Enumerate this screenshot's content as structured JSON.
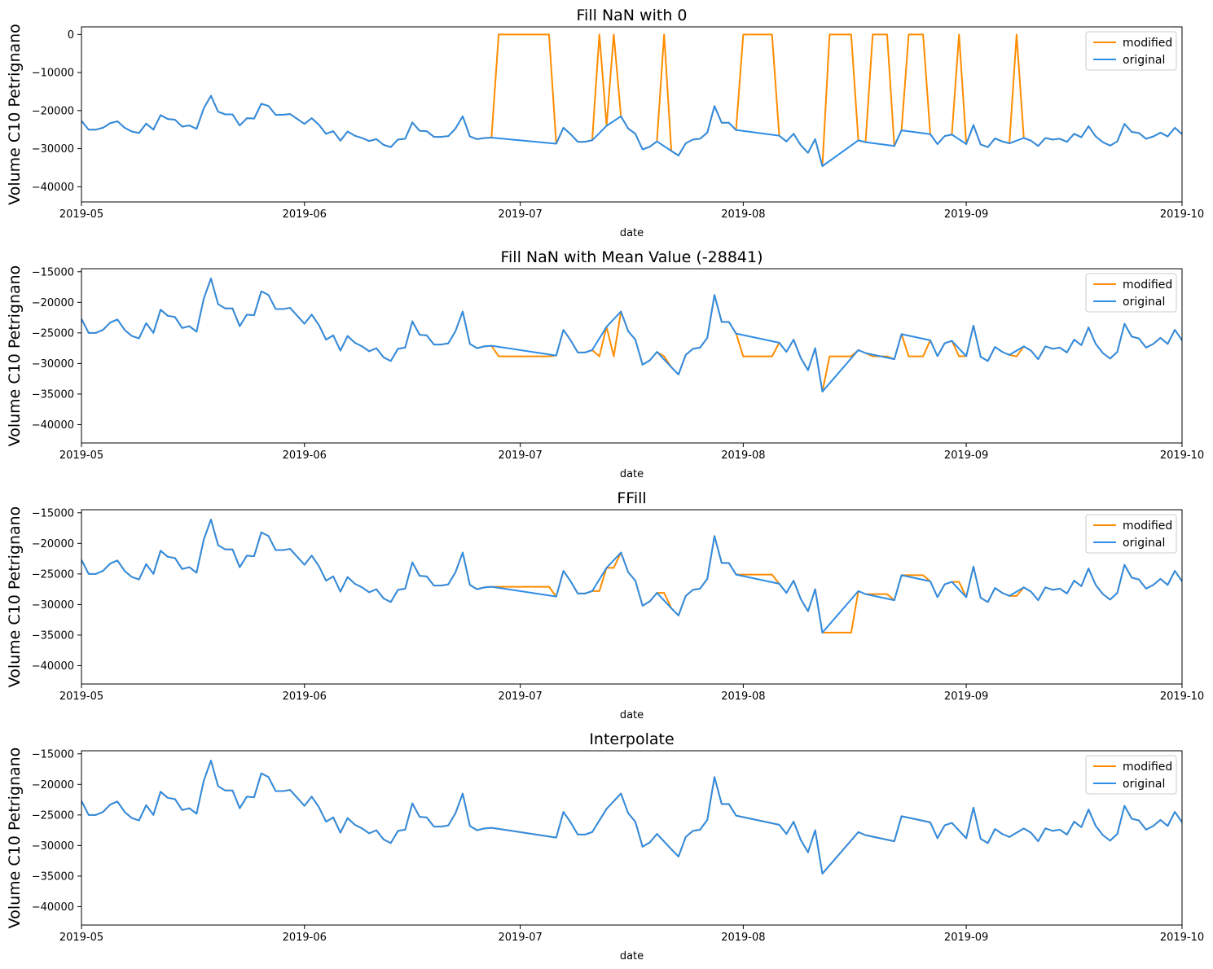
{
  "colors": {
    "modified": "#ff8c00",
    "original": "#2e8de6",
    "axis": "#000000",
    "legend_border": "#cccccc"
  },
  "chart_data": [
    {
      "type": "line",
      "title": "Fill NaN with 0",
      "xlabel": "date",
      "ylabel": "Volume C10 Petrignano",
      "xlim": [
        "2019-05-01",
        "2019-10-01"
      ],
      "ylim": [
        -44000,
        2000
      ],
      "xticks": [
        "2019-05",
        "2019-06",
        "2019-07",
        "2019-08",
        "2019-09",
        "2019-10"
      ],
      "yticks": [
        0,
        -10000,
        -20000,
        -30000,
        -40000
      ],
      "legend": [
        "modified",
        "original"
      ],
      "legend_position": "top-right",
      "modified_mode": "zero"
    },
    {
      "type": "line",
      "title": "Fill NaN with Mean Value (-28841)",
      "xlabel": "date",
      "ylabel": "Volume C10 Petrignano",
      "xlim": [
        "2019-05-01",
        "2019-10-01"
      ],
      "ylim": [
        -43000,
        -14500
      ],
      "xticks": [
        "2019-05",
        "2019-06",
        "2019-07",
        "2019-08",
        "2019-09",
        "2019-10"
      ],
      "yticks": [
        -15000,
        -20000,
        -25000,
        -30000,
        -35000,
        -40000
      ],
      "legend": [
        "modified",
        "original"
      ],
      "legend_position": "top-right",
      "modified_mode": "mean",
      "mean_value": -28841
    },
    {
      "type": "line",
      "title": "FFill",
      "xlabel": "date",
      "ylabel": "Volume C10 Petrignano",
      "xlim": [
        "2019-05-01",
        "2019-10-01"
      ],
      "ylim": [
        -43000,
        -14500
      ],
      "xticks": [
        "2019-05",
        "2019-06",
        "2019-07",
        "2019-08",
        "2019-09",
        "2019-10"
      ],
      "yticks": [
        -15000,
        -20000,
        -25000,
        -30000,
        -35000,
        -40000
      ],
      "legend": [
        "modified",
        "original"
      ],
      "legend_position": "top-right",
      "modified_mode": "ffill"
    },
    {
      "type": "line",
      "title": "Interpolate",
      "xlabel": "date",
      "ylabel": "Volume C10 Petrignano",
      "xlim": [
        "2019-05-01",
        "2019-10-01"
      ],
      "ylim": [
        -43000,
        -14500
      ],
      "xticks": [
        "2019-05",
        "2019-06",
        "2019-07",
        "2019-08",
        "2019-09",
        "2019-10"
      ],
      "yticks": [
        -15000,
        -20000,
        -25000,
        -30000,
        -35000,
        -40000
      ],
      "legend": [
        "modified",
        "original"
      ],
      "legend_position": "top-right",
      "modified_mode": "interpolate"
    }
  ],
  "series_original": [
    [
      "2019-05-01",
      -22700
    ],
    [
      "2019-05-02",
      -25000
    ],
    [
      "2019-05-03",
      -25000
    ],
    [
      "2019-05-04",
      -24500
    ],
    [
      "2019-05-05",
      -23300
    ],
    [
      "2019-05-06",
      -22800
    ],
    [
      "2019-05-07",
      -24500
    ],
    [
      "2019-05-08",
      -25500
    ],
    [
      "2019-05-09",
      -25900
    ],
    [
      "2019-05-10",
      -23400
    ],
    [
      "2019-05-11",
      -25000
    ],
    [
      "2019-05-12",
      -21200
    ],
    [
      "2019-05-13",
      -22200
    ],
    [
      "2019-05-14",
      -22400
    ],
    [
      "2019-05-15",
      -24200
    ],
    [
      "2019-05-16",
      -23900
    ],
    [
      "2019-05-17",
      -24800
    ],
    [
      "2019-05-18",
      -19400
    ],
    [
      "2019-05-19",
      -16100
    ],
    [
      "2019-05-20",
      -20300
    ],
    [
      "2019-05-21",
      -21000
    ],
    [
      "2019-05-22",
      -21000
    ],
    [
      "2019-05-23",
      -23900
    ],
    [
      "2019-05-24",
      -22000
    ],
    [
      "2019-05-25",
      -22100
    ],
    [
      "2019-05-26",
      -18200
    ],
    [
      "2019-05-27",
      -18800
    ],
    [
      "2019-05-28",
      -21100
    ],
    [
      "2019-05-29",
      -21100
    ],
    [
      "2019-05-30",
      -20900
    ],
    [
      "2019-05-31",
      -22200
    ],
    [
      "2019-06-01",
      -23500
    ],
    [
      "2019-06-02",
      -22000
    ],
    [
      "2019-06-03",
      -23700
    ],
    [
      "2019-06-04",
      -26100
    ],
    [
      "2019-06-05",
      -25400
    ],
    [
      "2019-06-06",
      -27900
    ],
    [
      "2019-06-07",
      -25500
    ],
    [
      "2019-06-08",
      -26600
    ],
    [
      "2019-06-09",
      -27200
    ],
    [
      "2019-06-10",
      -28000
    ],
    [
      "2019-06-11",
      -27500
    ],
    [
      "2019-06-12",
      -29000
    ],
    [
      "2019-06-13",
      -29600
    ],
    [
      "2019-06-14",
      -27600
    ],
    [
      "2019-06-15",
      -27400
    ],
    [
      "2019-06-16",
      -23100
    ],
    [
      "2019-06-17",
      -25300
    ],
    [
      "2019-06-18",
      -25400
    ],
    [
      "2019-06-19",
      -26900
    ],
    [
      "2019-06-20",
      -26900
    ],
    [
      "2019-06-21",
      -26700
    ],
    [
      "2019-06-22",
      -24700
    ],
    [
      "2019-06-23",
      -21500
    ],
    [
      "2019-06-24",
      -26800
    ],
    [
      "2019-06-25",
      -27500
    ],
    [
      "2019-06-26",
      -27200
    ],
    [
      "2019-06-27",
      -27100
    ],
    [
      "2019-07-06",
      -28700
    ],
    [
      "2019-07-07",
      -24500
    ],
    [
      "2019-07-08",
      -26200
    ],
    [
      "2019-07-09",
      -28200
    ],
    [
      "2019-07-10",
      -28200
    ],
    [
      "2019-07-11",
      -27800
    ],
    [
      "2019-07-13",
      -24000
    ],
    [
      "2019-07-15",
      -21500
    ],
    [
      "2019-07-16",
      -24700
    ],
    [
      "2019-07-17",
      -26100
    ],
    [
      "2019-07-18",
      -30200
    ],
    [
      "2019-07-19",
      -29500
    ],
    [
      "2019-07-20",
      -28100
    ],
    [
      "2019-07-22",
      -30600
    ],
    [
      "2019-07-23",
      -31800
    ],
    [
      "2019-07-24",
      -28600
    ],
    [
      "2019-07-25",
      -27600
    ],
    [
      "2019-07-26",
      -27400
    ],
    [
      "2019-07-27",
      -25800
    ],
    [
      "2019-07-28",
      -18800
    ],
    [
      "2019-07-29",
      -23200
    ],
    [
      "2019-07-30",
      -23200
    ],
    [
      "2019-07-31",
      -25100
    ],
    [
      "2019-08-06",
      -26600
    ],
    [
      "2019-08-07",
      -28100
    ],
    [
      "2019-08-08",
      -26100
    ],
    [
      "2019-08-09",
      -29100
    ],
    [
      "2019-08-10",
      -31100
    ],
    [
      "2019-08-11",
      -27500
    ],
    [
      "2019-08-12",
      -34600
    ],
    [
      "2019-08-17",
      -27800
    ],
    [
      "2019-08-18",
      -28300
    ],
    [
      "2019-08-22",
      -29300
    ],
    [
      "2019-08-23",
      -25200
    ],
    [
      "2019-08-27",
      -26200
    ],
    [
      "2019-08-28",
      -28800
    ],
    [
      "2019-08-29",
      -26700
    ],
    [
      "2019-08-30",
      -26300
    ],
    [
      "2019-09-01",
      -28800
    ],
    [
      "2019-09-02",
      -23800
    ],
    [
      "2019-09-03",
      -28900
    ],
    [
      "2019-09-04",
      -29600
    ],
    [
      "2019-09-05",
      -27300
    ],
    [
      "2019-09-06",
      -28100
    ],
    [
      "2019-09-07",
      -28600
    ],
    [
      "2019-09-09",
      -27200
    ],
    [
      "2019-09-10",
      -27900
    ],
    [
      "2019-09-11",
      -29300
    ],
    [
      "2019-09-12",
      -27200
    ],
    [
      "2019-09-13",
      -27600
    ],
    [
      "2019-09-14",
      -27400
    ],
    [
      "2019-09-15",
      -28200
    ],
    [
      "2019-09-16",
      -26100
    ],
    [
      "2019-09-17",
      -27000
    ],
    [
      "2019-09-18",
      -24100
    ],
    [
      "2019-09-19",
      -26800
    ],
    [
      "2019-09-20",
      -28300
    ],
    [
      "2019-09-21",
      -29200
    ],
    [
      "2019-09-22",
      -28100
    ],
    [
      "2019-09-23",
      -23500
    ],
    [
      "2019-09-24",
      -25600
    ],
    [
      "2019-09-25",
      -25900
    ],
    [
      "2019-09-26",
      -27400
    ],
    [
      "2019-09-27",
      -26800
    ],
    [
      "2019-09-28",
      -25800
    ],
    [
      "2019-09-29",
      -26800
    ],
    [
      "2019-09-30",
      -24500
    ],
    [
      "2019-10-01",
      -26200
    ],
    [
      "2019-10-02",
      -25100
    ]
  ]
}
